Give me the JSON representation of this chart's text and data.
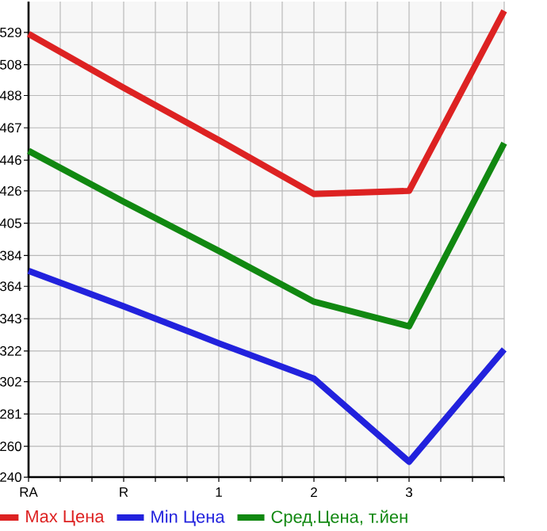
{
  "chart_data": {
    "type": "line",
    "categories": [
      "RA",
      "R",
      "1",
      "2",
      "3",
      null
    ],
    "series": [
      {
        "name": "Max Цена",
        "color": "#dd2222",
        "values": [
          528,
          493,
          459,
          424,
          426,
          543
        ]
      },
      {
        "name": "Min Цена",
        "color": "#2222dd",
        "values": [
          374,
          351,
          327,
          304,
          250,
          323
        ]
      },
      {
        "name": "Сред.Цена, т.йен",
        "color": "#118811",
        "values": [
          452,
          419,
          387,
          354,
          338,
          457
        ]
      }
    ],
    "ylim": [
      240,
      549
    ],
    "yticks": [
      240,
      260,
      281,
      302,
      322,
      343,
      364,
      384,
      405,
      426,
      446,
      467,
      488,
      508,
      529
    ],
    "grid": true,
    "legend": "bottom",
    "marker": "none",
    "line_style": "solid"
  }
}
